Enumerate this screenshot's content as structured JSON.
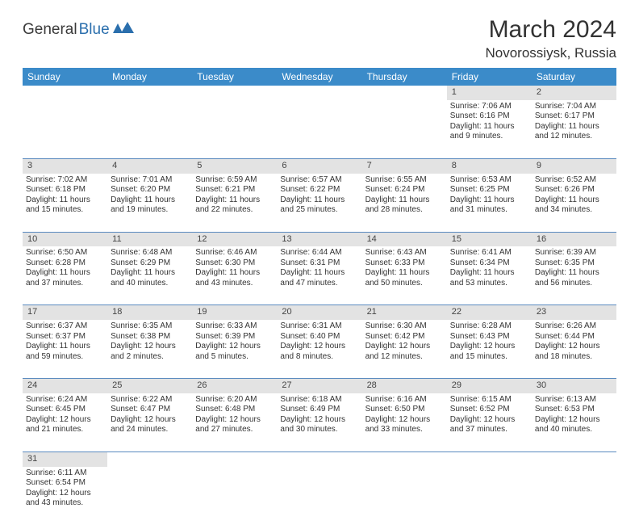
{
  "logo": {
    "general": "General",
    "blue": "Blue"
  },
  "title": "March 2024",
  "location": "Novorossiysk, Russia",
  "header_color": "#3b8bc9",
  "daynum_bg": "#e3e3e3",
  "border_color": "#5a8abf",
  "weekdays": [
    "Sunday",
    "Monday",
    "Tuesday",
    "Wednesday",
    "Thursday",
    "Friday",
    "Saturday"
  ],
  "weeks": [
    [
      null,
      null,
      null,
      null,
      null,
      {
        "n": "1",
        "sr": "Sunrise: 7:06 AM",
        "ss": "Sunset: 6:16 PM",
        "dl": "Daylight: 11 hours and 9 minutes."
      },
      {
        "n": "2",
        "sr": "Sunrise: 7:04 AM",
        "ss": "Sunset: 6:17 PM",
        "dl": "Daylight: 11 hours and 12 minutes."
      }
    ],
    [
      {
        "n": "3",
        "sr": "Sunrise: 7:02 AM",
        "ss": "Sunset: 6:18 PM",
        "dl": "Daylight: 11 hours and 15 minutes."
      },
      {
        "n": "4",
        "sr": "Sunrise: 7:01 AM",
        "ss": "Sunset: 6:20 PM",
        "dl": "Daylight: 11 hours and 19 minutes."
      },
      {
        "n": "5",
        "sr": "Sunrise: 6:59 AM",
        "ss": "Sunset: 6:21 PM",
        "dl": "Daylight: 11 hours and 22 minutes."
      },
      {
        "n": "6",
        "sr": "Sunrise: 6:57 AM",
        "ss": "Sunset: 6:22 PM",
        "dl": "Daylight: 11 hours and 25 minutes."
      },
      {
        "n": "7",
        "sr": "Sunrise: 6:55 AM",
        "ss": "Sunset: 6:24 PM",
        "dl": "Daylight: 11 hours and 28 minutes."
      },
      {
        "n": "8",
        "sr": "Sunrise: 6:53 AM",
        "ss": "Sunset: 6:25 PM",
        "dl": "Daylight: 11 hours and 31 minutes."
      },
      {
        "n": "9",
        "sr": "Sunrise: 6:52 AM",
        "ss": "Sunset: 6:26 PM",
        "dl": "Daylight: 11 hours and 34 minutes."
      }
    ],
    [
      {
        "n": "10",
        "sr": "Sunrise: 6:50 AM",
        "ss": "Sunset: 6:28 PM",
        "dl": "Daylight: 11 hours and 37 minutes."
      },
      {
        "n": "11",
        "sr": "Sunrise: 6:48 AM",
        "ss": "Sunset: 6:29 PM",
        "dl": "Daylight: 11 hours and 40 minutes."
      },
      {
        "n": "12",
        "sr": "Sunrise: 6:46 AM",
        "ss": "Sunset: 6:30 PM",
        "dl": "Daylight: 11 hours and 43 minutes."
      },
      {
        "n": "13",
        "sr": "Sunrise: 6:44 AM",
        "ss": "Sunset: 6:31 PM",
        "dl": "Daylight: 11 hours and 47 minutes."
      },
      {
        "n": "14",
        "sr": "Sunrise: 6:43 AM",
        "ss": "Sunset: 6:33 PM",
        "dl": "Daylight: 11 hours and 50 minutes."
      },
      {
        "n": "15",
        "sr": "Sunrise: 6:41 AM",
        "ss": "Sunset: 6:34 PM",
        "dl": "Daylight: 11 hours and 53 minutes."
      },
      {
        "n": "16",
        "sr": "Sunrise: 6:39 AM",
        "ss": "Sunset: 6:35 PM",
        "dl": "Daylight: 11 hours and 56 minutes."
      }
    ],
    [
      {
        "n": "17",
        "sr": "Sunrise: 6:37 AM",
        "ss": "Sunset: 6:37 PM",
        "dl": "Daylight: 11 hours and 59 minutes."
      },
      {
        "n": "18",
        "sr": "Sunrise: 6:35 AM",
        "ss": "Sunset: 6:38 PM",
        "dl": "Daylight: 12 hours and 2 minutes."
      },
      {
        "n": "19",
        "sr": "Sunrise: 6:33 AM",
        "ss": "Sunset: 6:39 PM",
        "dl": "Daylight: 12 hours and 5 minutes."
      },
      {
        "n": "20",
        "sr": "Sunrise: 6:31 AM",
        "ss": "Sunset: 6:40 PM",
        "dl": "Daylight: 12 hours and 8 minutes."
      },
      {
        "n": "21",
        "sr": "Sunrise: 6:30 AM",
        "ss": "Sunset: 6:42 PM",
        "dl": "Daylight: 12 hours and 12 minutes."
      },
      {
        "n": "22",
        "sr": "Sunrise: 6:28 AM",
        "ss": "Sunset: 6:43 PM",
        "dl": "Daylight: 12 hours and 15 minutes."
      },
      {
        "n": "23",
        "sr": "Sunrise: 6:26 AM",
        "ss": "Sunset: 6:44 PM",
        "dl": "Daylight: 12 hours and 18 minutes."
      }
    ],
    [
      {
        "n": "24",
        "sr": "Sunrise: 6:24 AM",
        "ss": "Sunset: 6:45 PM",
        "dl": "Daylight: 12 hours and 21 minutes."
      },
      {
        "n": "25",
        "sr": "Sunrise: 6:22 AM",
        "ss": "Sunset: 6:47 PM",
        "dl": "Daylight: 12 hours and 24 minutes."
      },
      {
        "n": "26",
        "sr": "Sunrise: 6:20 AM",
        "ss": "Sunset: 6:48 PM",
        "dl": "Daylight: 12 hours and 27 minutes."
      },
      {
        "n": "27",
        "sr": "Sunrise: 6:18 AM",
        "ss": "Sunset: 6:49 PM",
        "dl": "Daylight: 12 hours and 30 minutes."
      },
      {
        "n": "28",
        "sr": "Sunrise: 6:16 AM",
        "ss": "Sunset: 6:50 PM",
        "dl": "Daylight: 12 hours and 33 minutes."
      },
      {
        "n": "29",
        "sr": "Sunrise: 6:15 AM",
        "ss": "Sunset: 6:52 PM",
        "dl": "Daylight: 12 hours and 37 minutes."
      },
      {
        "n": "30",
        "sr": "Sunrise: 6:13 AM",
        "ss": "Sunset: 6:53 PM",
        "dl": "Daylight: 12 hours and 40 minutes."
      }
    ],
    [
      {
        "n": "31",
        "sr": "Sunrise: 6:11 AM",
        "ss": "Sunset: 6:54 PM",
        "dl": "Daylight: 12 hours and 43 minutes."
      },
      null,
      null,
      null,
      null,
      null,
      null
    ]
  ]
}
